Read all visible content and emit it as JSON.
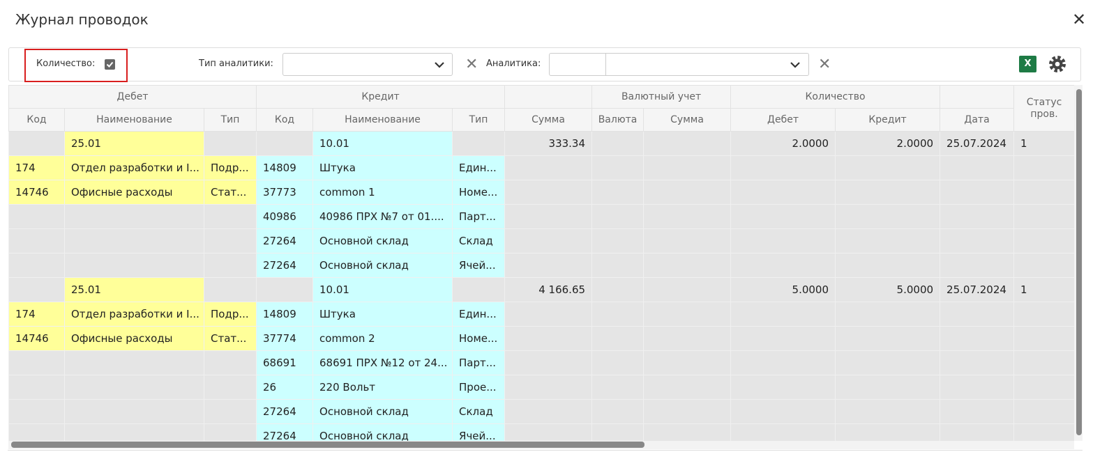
{
  "header": {
    "title": "Журнал проводок"
  },
  "toolbar": {
    "quantity_label": "Количество:",
    "analytics_type_label": "Тип аналитики:",
    "analytics_label": "Аналитика:",
    "excel_icon": "X"
  },
  "table": {
    "group_headers": [
      "Дебет",
      "Кредит",
      "Валютный учет",
      "Количество"
    ],
    "columns": [
      "Код",
      "Наименование",
      "Тип",
      "Код",
      "Наименование",
      "Тип",
      "Сумма",
      "Валюта",
      "Сумма",
      "Дебет",
      "Кредит",
      "Дата",
      "Статус пров."
    ],
    "rows": [
      {
        "d_name": "25.01",
        "c_name": "10.01",
        "amount": "333.34",
        "q_debit": "2.0000",
        "q_credit": "2.0000",
        "date": "25.07.2024",
        "status": "1"
      },
      {
        "d_code": "174",
        "d_name": "Отдел разработки и I...",
        "d_type": "Подр...",
        "c_code": "14809",
        "c_name": "Штука",
        "c_type": "Един..."
      },
      {
        "d_code": "14746",
        "d_name": "Офисные расходы",
        "d_type": "Стат...",
        "c_code": "37773",
        "c_name": "common 1",
        "c_type": "Номе..."
      },
      {
        "c_code": "40986",
        "c_name": "40986 ПРХ №7 от 01....",
        "c_type": "Парт..."
      },
      {
        "c_code": "27264",
        "c_name": "Основной склад",
        "c_type": "Склад"
      },
      {
        "c_code": "27264",
        "c_name": "Основной склад",
        "c_type": "Ячей..."
      },
      {
        "d_name": "25.01",
        "c_name": "10.01",
        "amount": "4 166.65",
        "q_debit": "5.0000",
        "q_credit": "5.0000",
        "date": "25.07.2024",
        "status": "1"
      },
      {
        "d_code": "174",
        "d_name": "Отдел разработки и I...",
        "d_type": "Подр...",
        "c_code": "14809",
        "c_name": "Штука",
        "c_type": "Един..."
      },
      {
        "d_code": "14746",
        "d_name": "Офисные расходы",
        "d_type": "Стат...",
        "c_code": "37774",
        "c_name": "common 2",
        "c_type": "Номе..."
      },
      {
        "c_code": "68691",
        "c_name": "68691 ПРХ №12 от 24...",
        "c_type": "Парт..."
      },
      {
        "c_code": "26",
        "c_name": "220 Вольт",
        "c_type": "Прое..."
      },
      {
        "c_code": "27264",
        "c_name": "Основной склад",
        "c_type": "Склад"
      },
      {
        "c_code": "27264",
        "c_name": "Основной склад",
        "c_type": "Ячей..."
      }
    ]
  }
}
